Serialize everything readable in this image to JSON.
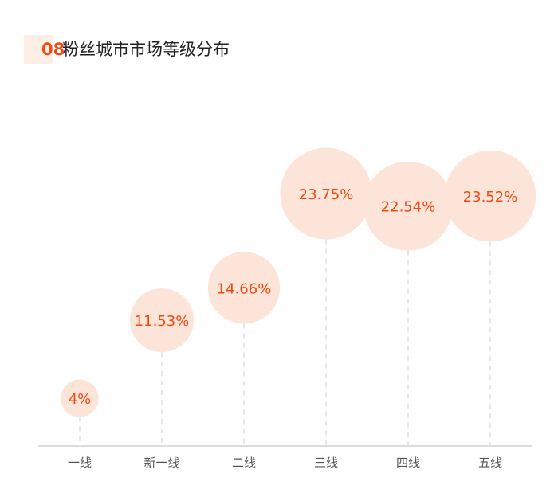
{
  "header": {
    "number": "08",
    "title": "粉丝城市市场等级分布"
  },
  "colors": {
    "accent": "#f04a13",
    "bubble": "#fde4d8",
    "axis": "#bbbbbb",
    "dash": "#dddddd",
    "tick_text": "#555555"
  },
  "chart_data": {
    "type": "bubble",
    "title": "粉丝城市市场等级分布",
    "categories": [
      "一线",
      "新一线",
      "二线",
      "三线",
      "四线",
      "五线"
    ],
    "values": [
      4,
      11.53,
      14.66,
      23.75,
      22.54,
      23.52
    ],
    "labels": [
      "4%",
      "11.53%",
      "14.66%",
      "23.75%",
      "22.54%",
      "23.52%"
    ],
    "unit": "%",
    "ylim": [
      0,
      25
    ],
    "grid": false,
    "legend": "none"
  }
}
